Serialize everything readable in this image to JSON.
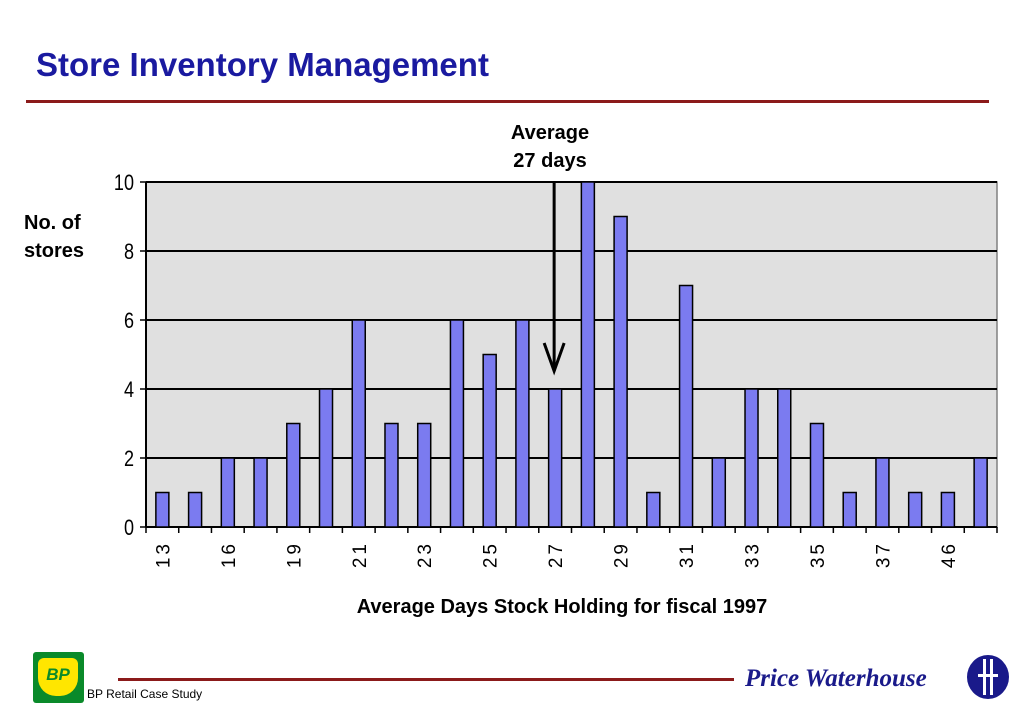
{
  "header": {
    "title": "Store Inventory Management"
  },
  "annotation": {
    "line1": "Average",
    "line2": "27 days"
  },
  "footer": {
    "left_text": "BP Retail Case Study",
    "right_text": "Price Waterhouse",
    "bp_logo_text": "BP"
  },
  "colors": {
    "title": "#1a1aa0",
    "rule": "#8b1a1a",
    "bar_fill": "#7b7bf0",
    "plot_background": "#e0e0e0"
  },
  "chart_data": {
    "type": "bar",
    "x": [
      13,
      14,
      16,
      17,
      19,
      20,
      21,
      22,
      23,
      24,
      25,
      26,
      27,
      28,
      29,
      30,
      31,
      32,
      33,
      34,
      35,
      36,
      37,
      38,
      46,
      47
    ],
    "values": [
      1,
      1,
      2,
      2,
      3,
      4,
      6,
      3,
      3,
      6,
      5,
      6,
      4,
      10,
      9,
      1,
      7,
      2,
      4,
      4,
      3,
      1,
      2,
      1,
      1,
      2
    ],
    "tick_labels": [
      "13",
      "16",
      "19",
      "21",
      "23",
      "25",
      "27",
      "29",
      "31",
      "33",
      "35",
      "37",
      "46"
    ],
    "xlabel": "Average Days Stock Holding for fiscal 1997",
    "ylabel": "No. of stores",
    "ylim": [
      0,
      10
    ],
    "yticks": [
      0,
      2,
      4,
      6,
      8,
      10
    ],
    "grid": true,
    "average_marker": {
      "value": 27
    }
  }
}
